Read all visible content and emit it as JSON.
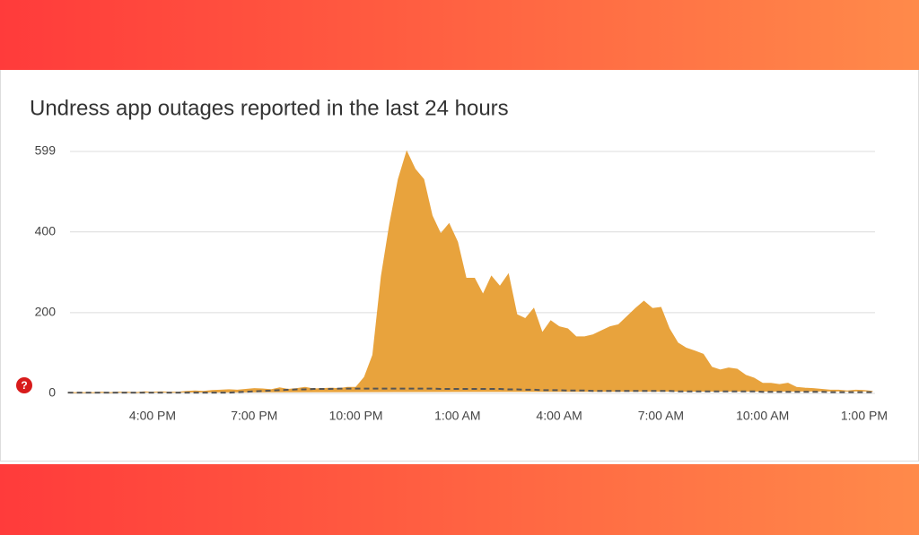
{
  "chart_data": {
    "type": "area",
    "title": "Undress app outages reported in the last 24 hours",
    "categories": [
      null,
      null,
      null,
      null,
      null,
      null,
      null,
      null,
      null,
      null,
      "4:00 PM",
      null,
      null,
      null,
      null,
      null,
      null,
      null,
      null,
      null,
      null,
      null,
      "7:00 PM",
      null,
      null,
      null,
      null,
      null,
      null,
      null,
      null,
      null,
      null,
      null,
      "10:00 PM",
      null,
      null,
      null,
      null,
      null,
      null,
      null,
      null,
      null,
      null,
      null,
      "1:00 AM",
      null,
      null,
      null,
      null,
      null,
      null,
      null,
      null,
      null,
      null,
      null,
      "4:00 AM",
      null,
      null,
      null,
      null,
      null,
      null,
      null,
      null,
      null,
      null,
      null,
      "7:00 AM",
      null,
      null,
      null,
      null,
      null,
      null,
      null,
      null,
      null,
      null,
      null,
      "10:00 AM",
      null,
      null,
      null,
      null,
      null,
      null,
      null,
      null,
      null,
      null,
      null,
      "1:00 PM",
      null
    ],
    "series": [
      {
        "color": "#e8a33d",
        "values": [
          2,
          2,
          2,
          2,
          3,
          2,
          3,
          3,
          2,
          4,
          3,
          4,
          3,
          3,
          5,
          6,
          5,
          7,
          8,
          9,
          8,
          10,
          12,
          11,
          9,
          14,
          10,
          12,
          15,
          11,
          12,
          13,
          12,
          15,
          15,
          40,
          95,
          290,
          420,
          530,
          599,
          555,
          530,
          440,
          395,
          420,
          375,
          285,
          285,
          245,
          290,
          265,
          295,
          195,
          185,
          210,
          150,
          180,
          165,
          160,
          140,
          140,
          145,
          155,
          165,
          170,
          190,
          210,
          228,
          210,
          213,
          160,
          125,
          112,
          105,
          97,
          65,
          58,
          63,
          60,
          45,
          38,
          25,
          25,
          22,
          25,
          15,
          13,
          12,
          10,
          8,
          8,
          6,
          8,
          7,
          5
        ]
      },
      {
        "color": "#555555",
        "dashed": true,
        "values": [
          2,
          2,
          2,
          2,
          2,
          2,
          2,
          2,
          2,
          2,
          2,
          2,
          2,
          2,
          2,
          2,
          2,
          2,
          2,
          2,
          3,
          4,
          5,
          6,
          7,
          8,
          9,
          10,
          10,
          11,
          11,
          11,
          12,
          12,
          12,
          12,
          12,
          12,
          12,
          12,
          12,
          12,
          12,
          12,
          11,
          11,
          11,
          11,
          11,
          11,
          11,
          11,
          10,
          10,
          9,
          9,
          8,
          8,
          8,
          7,
          7,
          7,
          6,
          6,
          6,
          6,
          6,
          6,
          6,
          6,
          6,
          6,
          5,
          5,
          5,
          5,
          5,
          5,
          5,
          5,
          5,
          5,
          4,
          4,
          4,
          4,
          4,
          4,
          4,
          4,
          3,
          3,
          3,
          3,
          3,
          3
        ]
      }
    ],
    "ylim": [
      0,
      599
    ],
    "yticks": [
      0,
      200,
      400,
      599
    ],
    "grid": true
  }
}
